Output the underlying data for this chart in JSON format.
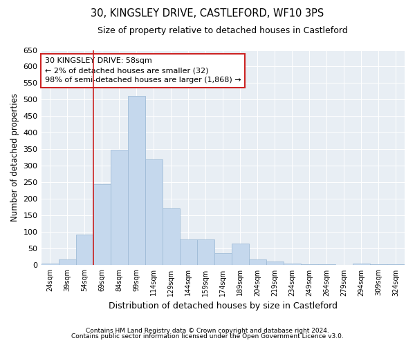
{
  "title": "30, KINGSLEY DRIVE, CASTLEFORD, WF10 3PS",
  "subtitle": "Size of property relative to detached houses in Castleford",
  "xlabel": "Distribution of detached houses by size in Castleford",
  "ylabel": "Number of detached properties",
  "categories": [
    "24sqm",
    "39sqm",
    "54sqm",
    "69sqm",
    "84sqm",
    "99sqm",
    "114sqm",
    "129sqm",
    "144sqm",
    "159sqm",
    "174sqm",
    "189sqm",
    "204sqm",
    "219sqm",
    "234sqm",
    "249sqm",
    "264sqm",
    "279sqm",
    "294sqm",
    "309sqm",
    "324sqm"
  ],
  "values": [
    5,
    18,
    92,
    245,
    348,
    512,
    320,
    172,
    78,
    78,
    36,
    65,
    18,
    12,
    5,
    4,
    2,
    1,
    5,
    2,
    2
  ],
  "bar_color": "#c5d8ed",
  "bar_edge_color": "#a0bcd8",
  "vline_color": "#cc2222",
  "annotation_line1": "30 KINGSLEY DRIVE: 58sqm",
  "annotation_line2": "← 2% of detached houses are smaller (32)",
  "annotation_line3": "98% of semi-detached houses are larger (1,868) →",
  "annotation_box_color": "#cc2222",
  "ylim": [
    0,
    650
  ],
  "yticks": [
    0,
    50,
    100,
    150,
    200,
    250,
    300,
    350,
    400,
    450,
    500,
    550,
    600,
    650
  ],
  "bg_color": "#e8eef4",
  "grid_color": "#ffffff",
  "footer1": "Contains HM Land Registry data © Crown copyright and database right 2024.",
  "footer2": "Contains public sector information licensed under the Open Government Licence v3.0."
}
